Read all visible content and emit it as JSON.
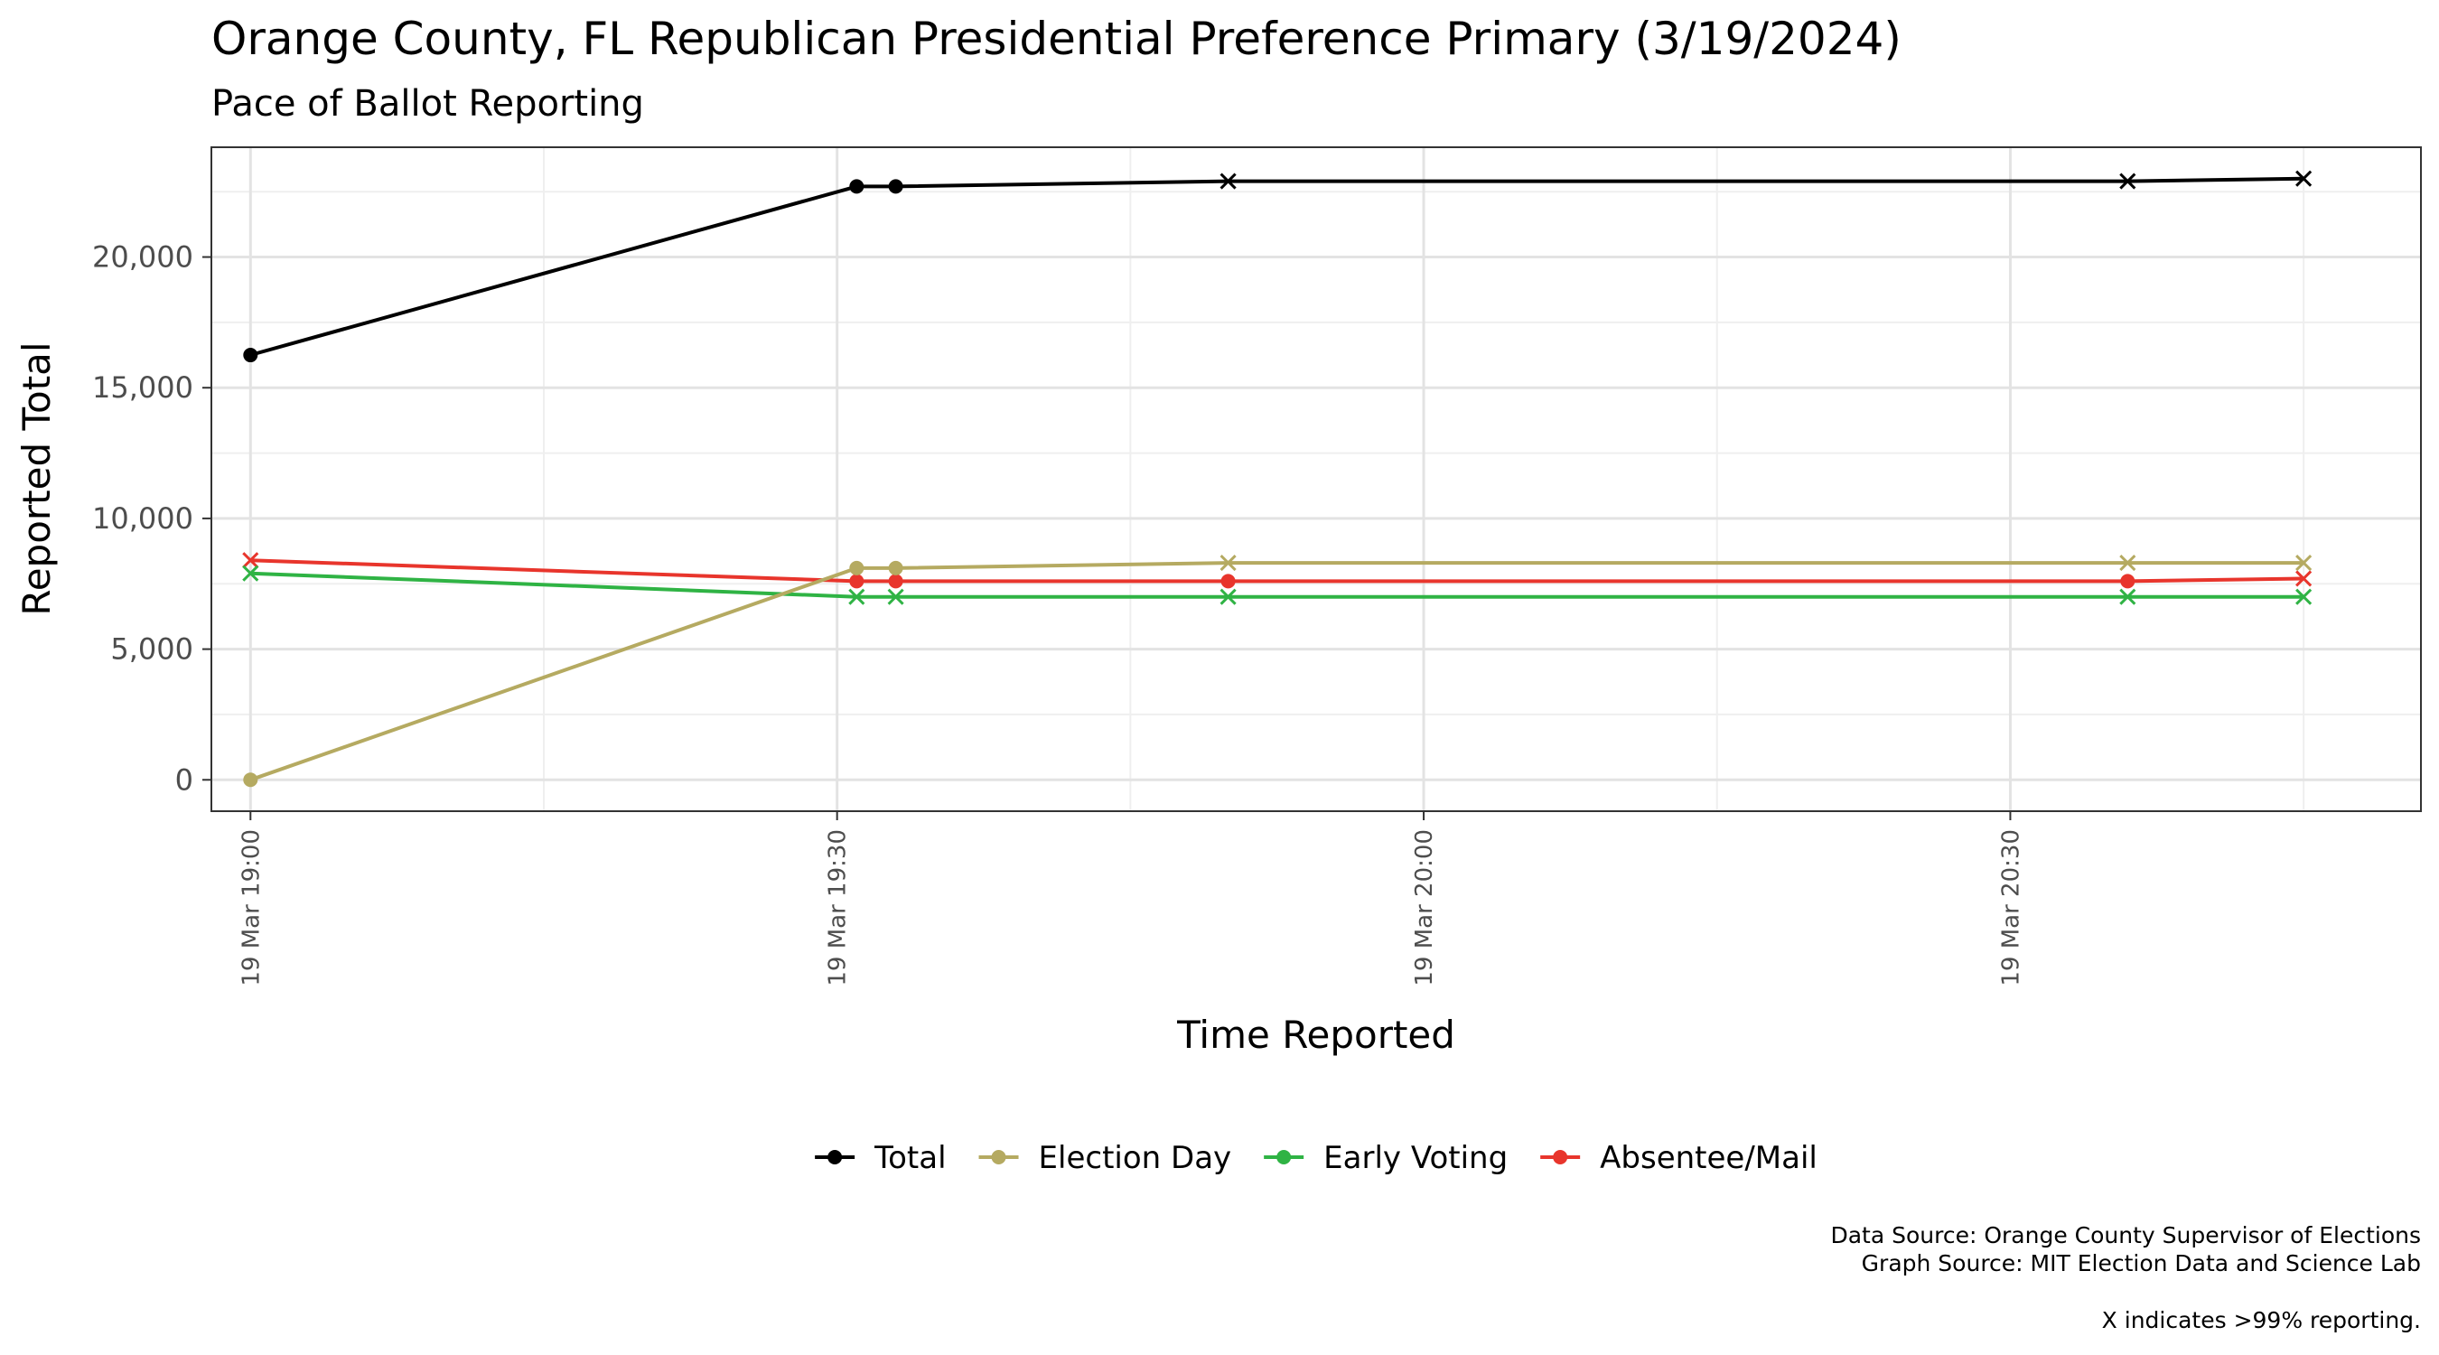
{
  "chart_data": {
    "type": "line",
    "title": "Orange County, FL Republican Presidential Preference Primary (3/19/2024)",
    "subtitle": "Pace of Ballot Reporting",
    "xlabel": "Time Reported",
    "ylabel": "Reported Total",
    "x_ticks": [
      "19 Mar 19:00",
      "19 Mar 19:30",
      "19 Mar 20:00",
      "19 Mar 20:30"
    ],
    "x_tick_times": [
      "19:00",
      "19:30",
      "20:00",
      "20:30"
    ],
    "xlim": [
      "18:58",
      "20:51"
    ],
    "y_ticks": [
      "0",
      "5,000",
      "10,000",
      "15,000",
      "20,000"
    ],
    "y_tick_values": [
      0,
      5000,
      10000,
      15000,
      20000
    ],
    "ylim": [
      -1200,
      24200
    ],
    "grid": true,
    "legend_position": "bottom",
    "x": [
      "19:00",
      "19:31",
      "19:33",
      "19:50",
      "20:36",
      "20:45"
    ],
    "series": [
      {
        "name": "Total",
        "color": "#000000",
        "values": [
          16250,
          22700,
          22700,
          22900,
          22900,
          23000
        ],
        "markers": [
          "dot",
          "dot",
          "dot",
          "x",
          "x",
          "x"
        ]
      },
      {
        "name": "Election Day",
        "color": "#b5aa61",
        "values": [
          0,
          8100,
          8100,
          8300,
          8300,
          8300
        ],
        "markers": [
          "dot",
          "dot",
          "dot",
          "x",
          "x",
          "x"
        ]
      },
      {
        "name": "Early Voting",
        "color": "#2fb344",
        "values": [
          7900,
          7000,
          7000,
          7000,
          7000,
          7000
        ],
        "markers": [
          "x",
          "x",
          "x",
          "x",
          "x",
          "x"
        ]
      },
      {
        "name": "Absentee/Mail",
        "color": "#e8352c",
        "values": [
          8400,
          7600,
          7600,
          7600,
          7600,
          7700
        ],
        "markers": [
          "x",
          "dot",
          "dot",
          "dot",
          "dot",
          "x"
        ]
      }
    ]
  },
  "caption": {
    "line1": "Data Source: Orange County Supervisor of Elections",
    "line2": "Graph Source: MIT Election Data and Science Lab",
    "line3": "X indicates >99% reporting."
  }
}
